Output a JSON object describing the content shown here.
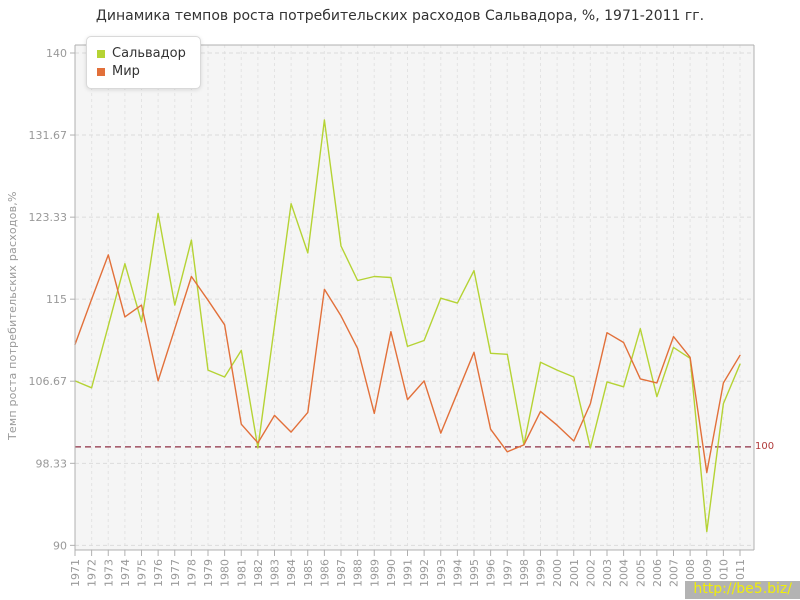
{
  "title": "Динамика темпов роста потребительских расходов Сальвадора, %, 1971-2011 гг.",
  "y_axis_title": "Темп роста потребительских расходов,%",
  "watermark_text": "http://be5.biz/",
  "colors": {
    "salvador_line": "#b5d334",
    "world_line": "#e2703a",
    "baseline": "#8f2e44",
    "baseline_label": "#b03a3a",
    "plot_bg": "#f5f5f5",
    "grid": "#dcdcdc",
    "axis": "#b0b0b0",
    "tick_text": "#999999",
    "watermark_bg": "#b3b3b3",
    "watermark_text": "#f1ef06"
  },
  "chart_data": {
    "type": "line",
    "title": "Динамика темпов роста потребительских расходов Сальвадора, %, 1971-2011 гг.",
    "xlabel": "",
    "ylabel": "Темп роста потребительских расходов,%",
    "ylim": [
      90,
      140
    ],
    "ytick_labels": [
      "90",
      "98.33",
      "106.67",
      "115",
      "123.33",
      "131.67",
      "140"
    ],
    "ytick_values": [
      90,
      98.33,
      106.67,
      115,
      123.33,
      131.67,
      140
    ],
    "grid": true,
    "legend_position": "top-left",
    "baseline": {
      "value": 100,
      "label": "100"
    },
    "categories": [
      1971,
      1972,
      1973,
      1974,
      1975,
      1976,
      1977,
      1978,
      1979,
      1980,
      1981,
      1982,
      1983,
      1984,
      1985,
      1986,
      1987,
      1988,
      1989,
      1990,
      1991,
      1992,
      1993,
      1994,
      1995,
      1996,
      1997,
      1998,
      1999,
      2000,
      2001,
      2002,
      2003,
      2004,
      2005,
      2006,
      2007,
      2008,
      2009,
      2010,
      2011
    ],
    "series": [
      {
        "name": "Сальвадор",
        "color": "#b5d334",
        "values": [
          106.7,
          106.0,
          112.3,
          118.6,
          112.7,
          123.7,
          114.4,
          121.0,
          107.8,
          107.1,
          109.8,
          99.9,
          112.3,
          124.7,
          119.7,
          133.2,
          120.4,
          116.9,
          117.3,
          117.2,
          110.2,
          110.8,
          115.1,
          114.6,
          117.9,
          109.5,
          109.4,
          100.2,
          108.6,
          107.8,
          107.1,
          99.9,
          106.6,
          106.1,
          112.0,
          105.1,
          110.1,
          109.0,
          91.4,
          104.4,
          108.4
        ]
      },
      {
        "name": "Мир",
        "color": "#e2703a",
        "values": [
          110.4,
          115.0,
          119.5,
          113.2,
          114.4,
          106.7,
          112.0,
          117.3,
          114.9,
          112.4,
          102.3,
          100.4,
          103.2,
          101.5,
          103.5,
          116.0,
          113.3,
          110.0,
          103.4,
          111.7,
          104.8,
          106.7,
          101.4,
          105.5,
          109.6,
          101.8,
          99.5,
          100.2,
          103.6,
          102.2,
          100.6,
          104.4,
          111.6,
          110.6,
          106.9,
          106.5,
          111.2,
          109.1,
          97.4,
          106.5,
          109.3
        ]
      }
    ]
  }
}
